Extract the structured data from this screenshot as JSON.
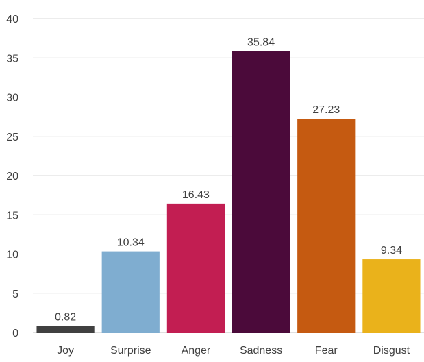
{
  "chart_data": {
    "type": "bar",
    "title": "",
    "xlabel": "",
    "ylabel": "",
    "categories": [
      "Joy",
      "Surprise",
      "Anger",
      "Sadness",
      "Fear",
      "Disgust"
    ],
    "values": [
      0.82,
      10.34,
      16.43,
      35.84,
      27.23,
      9.34
    ],
    "value_labels": [
      "0.82",
      "10.34",
      "16.43",
      "35.84",
      "27.23",
      "9.34"
    ],
    "colors": [
      "#404040",
      "#7fadd0",
      "#c21e52",
      "#4b0a3a",
      "#c55a11",
      "#eab21b"
    ],
    "ylim": [
      0,
      40
    ],
    "yticks": [
      0,
      5,
      10,
      15,
      20,
      25,
      30,
      35,
      40
    ],
    "grid": true,
    "legend": "none",
    "gridline_color": "#d9d9d9"
  }
}
